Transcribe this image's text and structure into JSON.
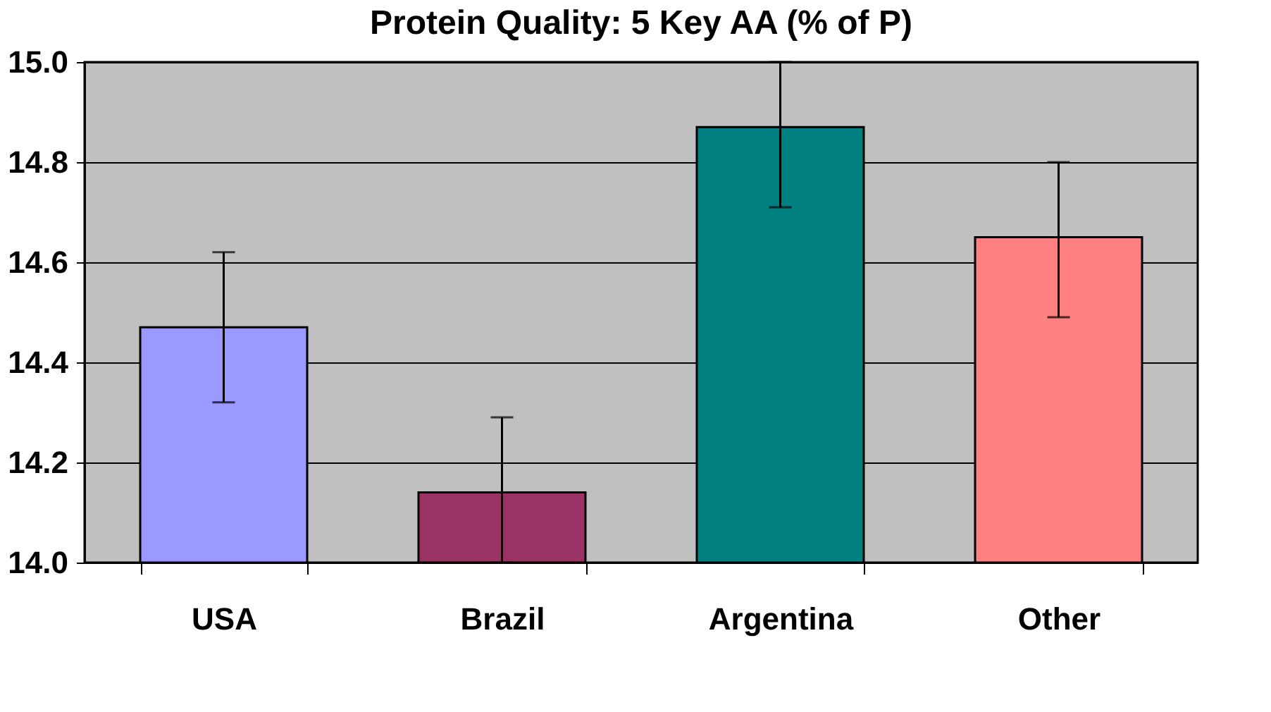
{
  "chart_data": {
    "type": "bar",
    "title": "Protein Quality: 5 Key AA (% of P)",
    "categories": [
      "USA",
      "Brazil",
      "Argentina",
      "Other"
    ],
    "values": [
      14.47,
      14.14,
      14.87,
      14.65
    ],
    "colors": [
      "#9999ff",
      "#993366",
      "#008080",
      "#ff8080"
    ],
    "errors": [
      [
        14.32,
        14.62
      ],
      [
        14.0,
        14.29
      ],
      [
        14.71,
        15.0
      ],
      [
        14.49,
        14.8
      ]
    ],
    "ylim": [
      14.0,
      15.0
    ],
    "yticks": [
      {
        "value": 14,
        "label": "14.0"
      },
      14.2,
      14.4,
      14.6,
      14.8,
      {
        "value": 15,
        "label": "15.0"
      }
    ],
    "grid": "y"
  }
}
